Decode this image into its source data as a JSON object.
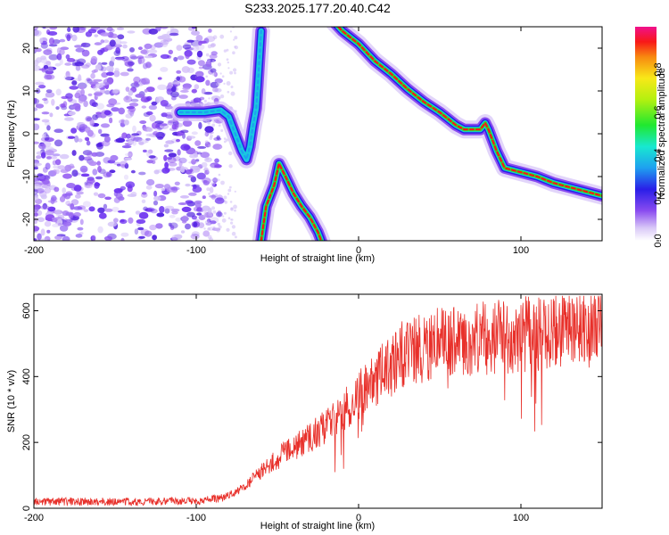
{
  "title": "S233.2025.177.20.40.C42",
  "colors": {
    "snr_line": "#e8302a",
    "speckle": "#7a3cf0",
    "frame": "#000000"
  },
  "chart_data": [
    {
      "type": "heatmap",
      "xlabel": "Height of straight line (km)",
      "ylabel": "Frequency (Hz)",
      "xlim": [
        -200,
        150
      ],
      "ylim": [
        -25,
        25
      ],
      "x_ticks": [
        -200,
        -100,
        0,
        100
      ],
      "x_tick_labels": [
        "-200",
        "-100",
        "0",
        "100"
      ],
      "y_ticks": [
        -20,
        -10,
        0,
        10,
        20
      ],
      "y_tick_labels": [
        "-20",
        "-10",
        "0",
        "10",
        "20"
      ],
      "colorbar": {
        "label": "Normalized spectral amplitude",
        "range": [
          0,
          1
        ],
        "ticks": [
          0,
          0.2,
          0.4,
          0.6,
          0.8
        ],
        "tick_labels": [
          "0.0",
          "0.2",
          "0.4",
          "0.6",
          "0.8"
        ]
      },
      "traces": [
        {
          "amplitude": 0.35,
          "points": [
            [
              -110,
              5
            ],
            [
              -95,
              5
            ],
            [
              -85,
              5.5
            ],
            [
              -80,
              4
            ],
            [
              -76,
              0
            ],
            [
              -72,
              -4
            ],
            [
              -69,
              -6
            ],
            [
              -67,
              -3
            ],
            [
              -65,
              2
            ],
            [
              -63,
              6
            ],
            [
              -62,
              12
            ],
            [
              -61,
              18
            ],
            [
              -60,
              24
            ]
          ]
        },
        {
          "amplitude": 0.9,
          "points": [
            [
              -60,
              -25
            ],
            [
              -57,
              -17
            ],
            [
              -52,
              -12
            ],
            [
              -49,
              -7
            ],
            [
              -45,
              -10
            ],
            [
              -40,
              -14
            ],
            [
              -35,
              -17
            ],
            [
              -30,
              -19.5
            ],
            [
              -25,
              -23
            ],
            [
              -22,
              -26
            ]
          ]
        },
        {
          "amplitude": 0.95,
          "points": [
            [
              -15,
              26
            ],
            [
              -10,
              24
            ],
            [
              0,
              21
            ],
            [
              10,
              17
            ],
            [
              20,
              14
            ],
            [
              30,
              10.5
            ],
            [
              40,
              7.5
            ],
            [
              50,
              5
            ],
            [
              60,
              2
            ],
            [
              65,
              1
            ],
            [
              75,
              1
            ],
            [
              78,
              2.5
            ],
            [
              80,
              1
            ],
            [
              85,
              -4
            ],
            [
              90,
              -8
            ],
            [
              100,
              -9
            ],
            [
              110,
              -10
            ],
            [
              120,
              -11.5
            ],
            [
              130,
              -12.5
            ],
            [
              140,
              -13.5
            ],
            [
              150,
              -14.5
            ]
          ]
        }
      ]
    },
    {
      "type": "line",
      "xlabel": "Height of straight line (km)",
      "ylabel": "SNR (10 * v/v)",
      "xlim": [
        -200,
        150
      ],
      "ylim": [
        0,
        650
      ],
      "x_ticks": [
        -200,
        -100,
        0,
        100
      ],
      "x_tick_labels": [
        "-200",
        "-100",
        "0",
        "100"
      ],
      "y_ticks": [
        0,
        200,
        400,
        600
      ],
      "y_tick_labels": [
        "0",
        "200",
        "400",
        "600"
      ],
      "envelope": {
        "x": [
          -200,
          -150,
          -100,
          -85,
          -75,
          -65,
          -55,
          -45,
          -35,
          -25,
          -15,
          -5,
          5,
          15,
          25,
          35,
          45,
          55,
          65,
          75,
          85,
          95,
          105,
          115,
          125,
          135,
          150
        ],
        "y": [
          20,
          20,
          22,
          30,
          50,
          90,
          130,
          170,
          200,
          230,
          270,
          310,
          370,
          410,
          450,
          480,
          495,
          505,
          510,
          515,
          520,
          525,
          530,
          535,
          540,
          545,
          550
        ]
      }
    }
  ]
}
